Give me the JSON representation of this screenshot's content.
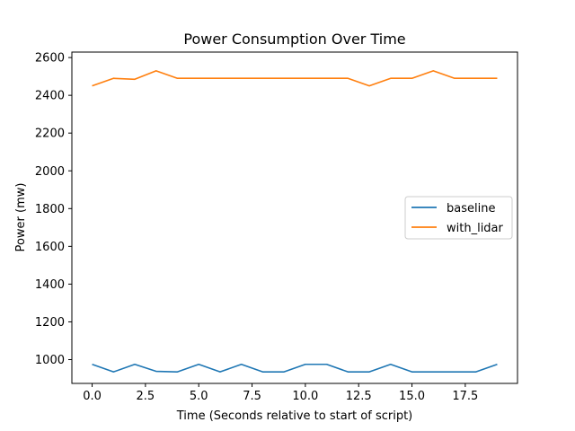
{
  "chart_data": {
    "type": "line",
    "title": "Power Consumption Over Time",
    "xlabel": "Time (Seconds relative to start of script)",
    "ylabel": "Power (mw)",
    "xlim": [
      -0.95,
      19.95
    ],
    "ylim": [
      874,
      2629
    ],
    "xticks": [
      0.0,
      2.5,
      5.0,
      7.5,
      10.0,
      12.5,
      15.0,
      17.5
    ],
    "xtick_labels": [
      "0.0",
      "2.5",
      "5.0",
      "7.5",
      "10.0",
      "12.5",
      "15.0",
      "17.5"
    ],
    "yticks": [
      1000,
      1200,
      1400,
      1600,
      1800,
      2000,
      2200,
      2400,
      2600
    ],
    "ytick_labels": [
      "1000",
      "1200",
      "1400",
      "1600",
      "1800",
      "2000",
      "2200",
      "2400",
      "2600"
    ],
    "grid": false,
    "legend_position": "center-right",
    "x": [
      0,
      1,
      2,
      3,
      4,
      5,
      6,
      7,
      8,
      9,
      10,
      11,
      12,
      13,
      14,
      15,
      16,
      17,
      18,
      19
    ],
    "series": [
      {
        "name": "baseline",
        "color": "#1f77b4",
        "values": [
          975,
          935,
          975,
          938,
          935,
          975,
          935,
          975,
          935,
          935,
          975,
          975,
          935,
          935,
          975,
          935,
          935,
          935,
          935,
          975
        ]
      },
      {
        "name": "with_lidar",
        "color": "#ff7f0e",
        "values": [
          2450,
          2490,
          2485,
          2530,
          2490,
          2490,
          2490,
          2490,
          2490,
          2490,
          2490,
          2490,
          2490,
          2450,
          2490,
          2490,
          2530,
          2490,
          2490,
          2490
        ]
      }
    ]
  }
}
